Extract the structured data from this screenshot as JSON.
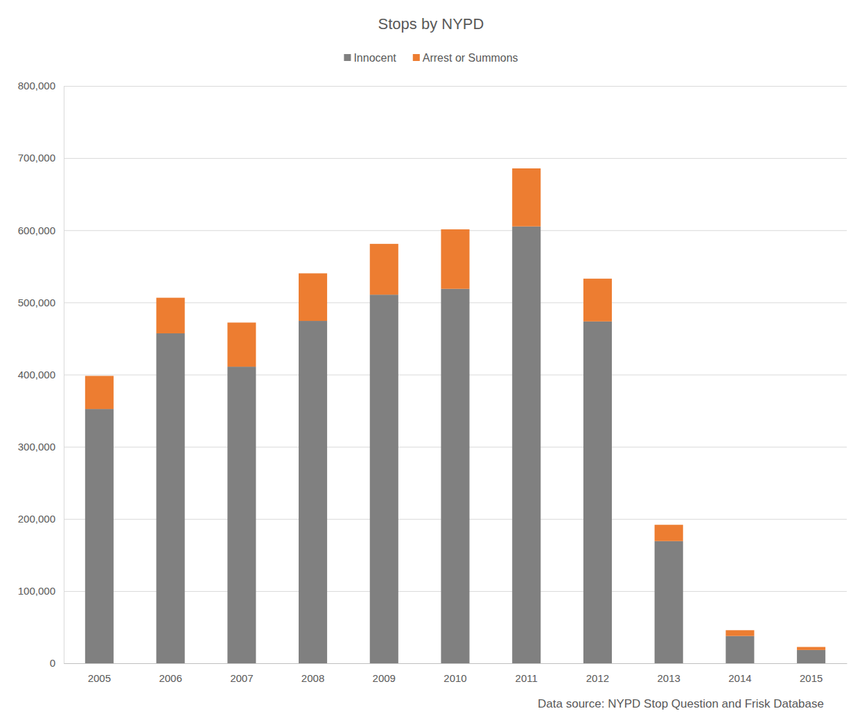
{
  "chart_data": {
    "type": "bar",
    "title": "Stops by NYPD",
    "annotations": [
      "Data source: NYPD Stop Question and Frisk Database"
    ],
    "categories": [
      "2005",
      "2006",
      "2007",
      "2008",
      "2009",
      "2010",
      "2011",
      "2012",
      "2013",
      "2014",
      "2015"
    ],
    "series": [
      {
        "name": "Innocent",
        "color": "#808080",
        "values": [
          352348,
          457163,
          410936,
          474387,
          510742,
          518849,
          605328,
          473644,
          169252,
          37744,
          18353
        ]
      },
      {
        "name": "Arrest or Summons",
        "color": "#ed7d31",
        "values": [
          45843,
          49328,
          61160,
          65915,
          70426,
          82436,
          80396,
          59267,
          22599,
          8043,
          4210
        ]
      }
    ],
    "stacked": true,
    "legend": "top",
    "grid": true,
    "ylim": [
      0,
      800000
    ],
    "yticks": [
      0,
      {
        "value": 100000,
        "label": "100,000"
      },
      {
        "value": 200000,
        "label": "200,000"
      },
      {
        "value": 300000,
        "label": "300,000"
      },
      {
        "value": 400000,
        "label": "400,000"
      },
      {
        "value": 500000,
        "label": "500,000"
      },
      {
        "value": 600000,
        "label": "600,000"
      },
      {
        "value": 700000,
        "label": "700,000"
      },
      {
        "value": 800000,
        "label": "800,000"
      }
    ]
  }
}
